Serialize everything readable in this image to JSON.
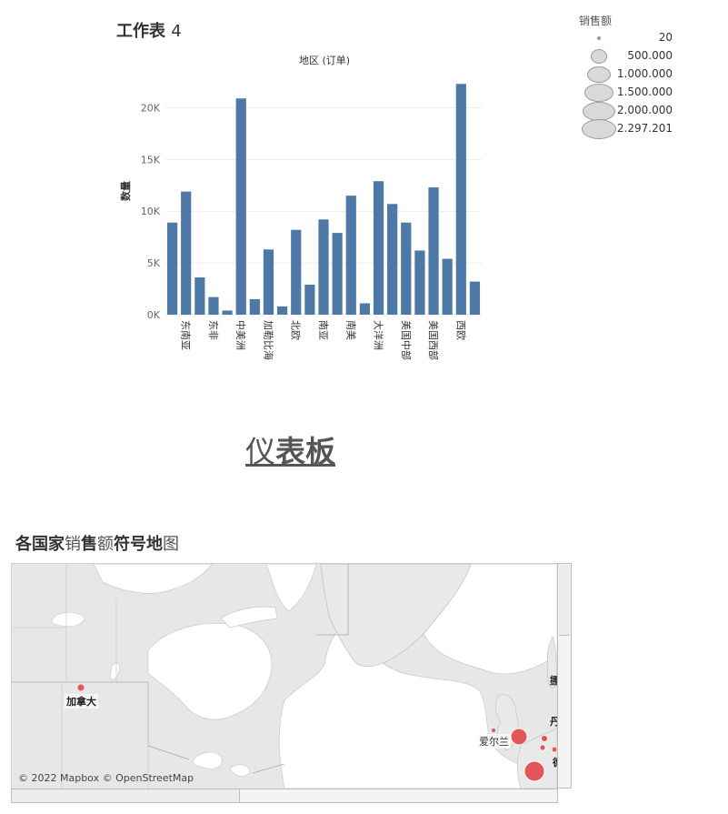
{
  "worksheet": {
    "title_bold": "工作表",
    "title_num": "4"
  },
  "legend": {
    "title": "销售额",
    "items": [
      {
        "label": "20"
      },
      {
        "label": "500.000"
      },
      {
        "label": "1.000.000"
      },
      {
        "label": "1.500.000"
      },
      {
        "label": "2.000.000"
      },
      {
        "label": "2.297.201"
      }
    ]
  },
  "chart_data": {
    "type": "bar",
    "title": "地区 (订单)",
    "xlabel": "",
    "ylabel": "数量",
    "ylim": [
      0,
      22500
    ],
    "yticks": [
      "0K",
      "5K",
      "10K",
      "15K",
      "20K"
    ],
    "grid": true,
    "color": "#4e79a7",
    "x_tick_labels": [
      "东南亚",
      "东非",
      "中美洲",
      "加勒比海",
      "北欧",
      "南亚",
      "南美",
      "大洋洲",
      "美国中部",
      "美国西部",
      "西欧"
    ],
    "values": [
      8900,
      11900,
      3600,
      1700,
      400,
      20900,
      1500,
      6300,
      800,
      8200,
      2900,
      9200,
      7900,
      11500,
      1100,
      12900,
      10700,
      8900,
      6200,
      12300,
      5400,
      22300,
      3200
    ]
  },
  "dashboard": {
    "title_light": "仪",
    "title_bold": "表板"
  },
  "map": {
    "title_part1": "各国家",
    "title_part2": "销",
    "title_part3": "售",
    "title_part4": "额",
    "title_part5": "符号地",
    "title_part6": "图",
    "labels": {
      "canada": "加拿大",
      "ireland": "爱尔兰"
    },
    "attribution": "© 2022 Mapbox © OpenStreetMap",
    "colors": {
      "marker": "#e15759",
      "land": "#e9e9e9",
      "water": "#ffffff",
      "border": "#a9a9a9"
    }
  }
}
